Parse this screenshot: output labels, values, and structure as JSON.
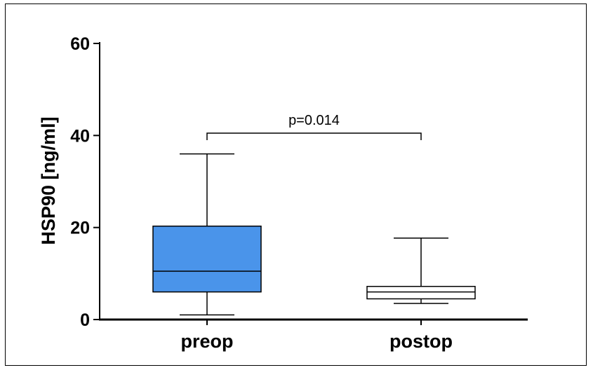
{
  "chart_data": {
    "type": "box",
    "title": "",
    "xlabel": "",
    "ylabel": "HSP90 [ng/ml]",
    "ylim": [
      0,
      60
    ],
    "yticks": [
      "0",
      "20",
      "40",
      "60"
    ],
    "categories": [
      "preop",
      "postop"
    ],
    "boxes": [
      {
        "category": "preop",
        "min": 1,
        "q1": 6,
        "median": 10.5,
        "q3": 20.3,
        "max": 36,
        "fill": "#4a94ea"
      },
      {
        "category": "postop",
        "min": 3.5,
        "q1": 4.5,
        "median": 6,
        "q3": 7.2,
        "max": 17.7,
        "fill": "#ffffff"
      }
    ],
    "annotation": {
      "text": "p=0.014",
      "from": "preop",
      "to": "postop",
      "y": 40.5
    },
    "grid": false,
    "legend": "none"
  },
  "colors": {
    "preop_box": "#4a94ea",
    "postop_box": "#ffffff",
    "axis": "#000000"
  }
}
